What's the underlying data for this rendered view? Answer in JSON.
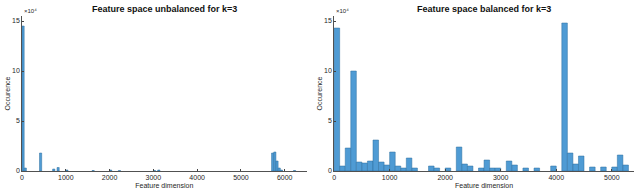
{
  "chart_data": [
    {
      "type": "bar",
      "title": "Feature space unbalanced for k=3",
      "x_label": "Feature dimension",
      "y_label": "Occurence",
      "annotations": [
        "×10⁴"
      ],
      "x": [
        25,
        75,
        425,
        725,
        825,
        1025,
        1625,
        2025,
        2225,
        3025,
        3125,
        5725,
        5775,
        5825,
        5875,
        5925,
        6225
      ],
      "values": [
        14.5,
        0.3,
        1.8,
        0.2,
        0.35,
        0.1,
        0.05,
        0.1,
        0.05,
        0.05,
        0.1,
        1.8,
        1.9,
        1.0,
        0.3,
        0.1,
        0.05
      ],
      "color": "#4f9bd4",
      "xlim": [
        0,
        6500
      ],
      "xticks": [
        0,
        1000,
        2000,
        3000,
        4000,
        5000,
        6000
      ],
      "ylim": [
        0,
        15.5
      ],
      "yticks": [
        0,
        5,
        10,
        15
      ],
      "grid": false
    },
    {
      "type": "bar",
      "title": "Feature space balanced for k=3",
      "x_label": "Feature dimension",
      "y_label": "Occurence",
      "annotations": [
        "×10⁴"
      ],
      "x": [
        50,
        150,
        250,
        350,
        450,
        550,
        650,
        750,
        850,
        950,
        1050,
        1150,
        1250,
        1350,
        1450,
        1750,
        1850,
        2050,
        2250,
        2350,
        2450,
        2650,
        2750,
        2850,
        2950,
        3150,
        3250,
        3450,
        3650,
        3950,
        4150,
        4250,
        4350,
        4450,
        4650,
        4850,
        5050,
        5150,
        5250
      ],
      "values": [
        14.3,
        0.5,
        2.3,
        10.0,
        0.9,
        0.8,
        1.0,
        3.1,
        0.9,
        0.6,
        1.9,
        0.5,
        0.3,
        1.3,
        0.3,
        0.5,
        0.3,
        0.3,
        2.4,
        0.7,
        0.5,
        0.3,
        1.1,
        0.3,
        0.3,
        1.0,
        0.6,
        0.3,
        0.3,
        0.5,
        14.8,
        1.8,
        0.7,
        1.5,
        0.4,
        0.4,
        0.4,
        1.6,
        0.6
      ],
      "color": "#4f9bd4",
      "xlim": [
        0,
        5400
      ],
      "xticks": [
        0,
        1000,
        2000,
        3000,
        4000,
        5000
      ],
      "ylim": [
        0,
        15.5
      ],
      "yticks": [
        0,
        5,
        10,
        15
      ],
      "grid": false
    }
  ]
}
